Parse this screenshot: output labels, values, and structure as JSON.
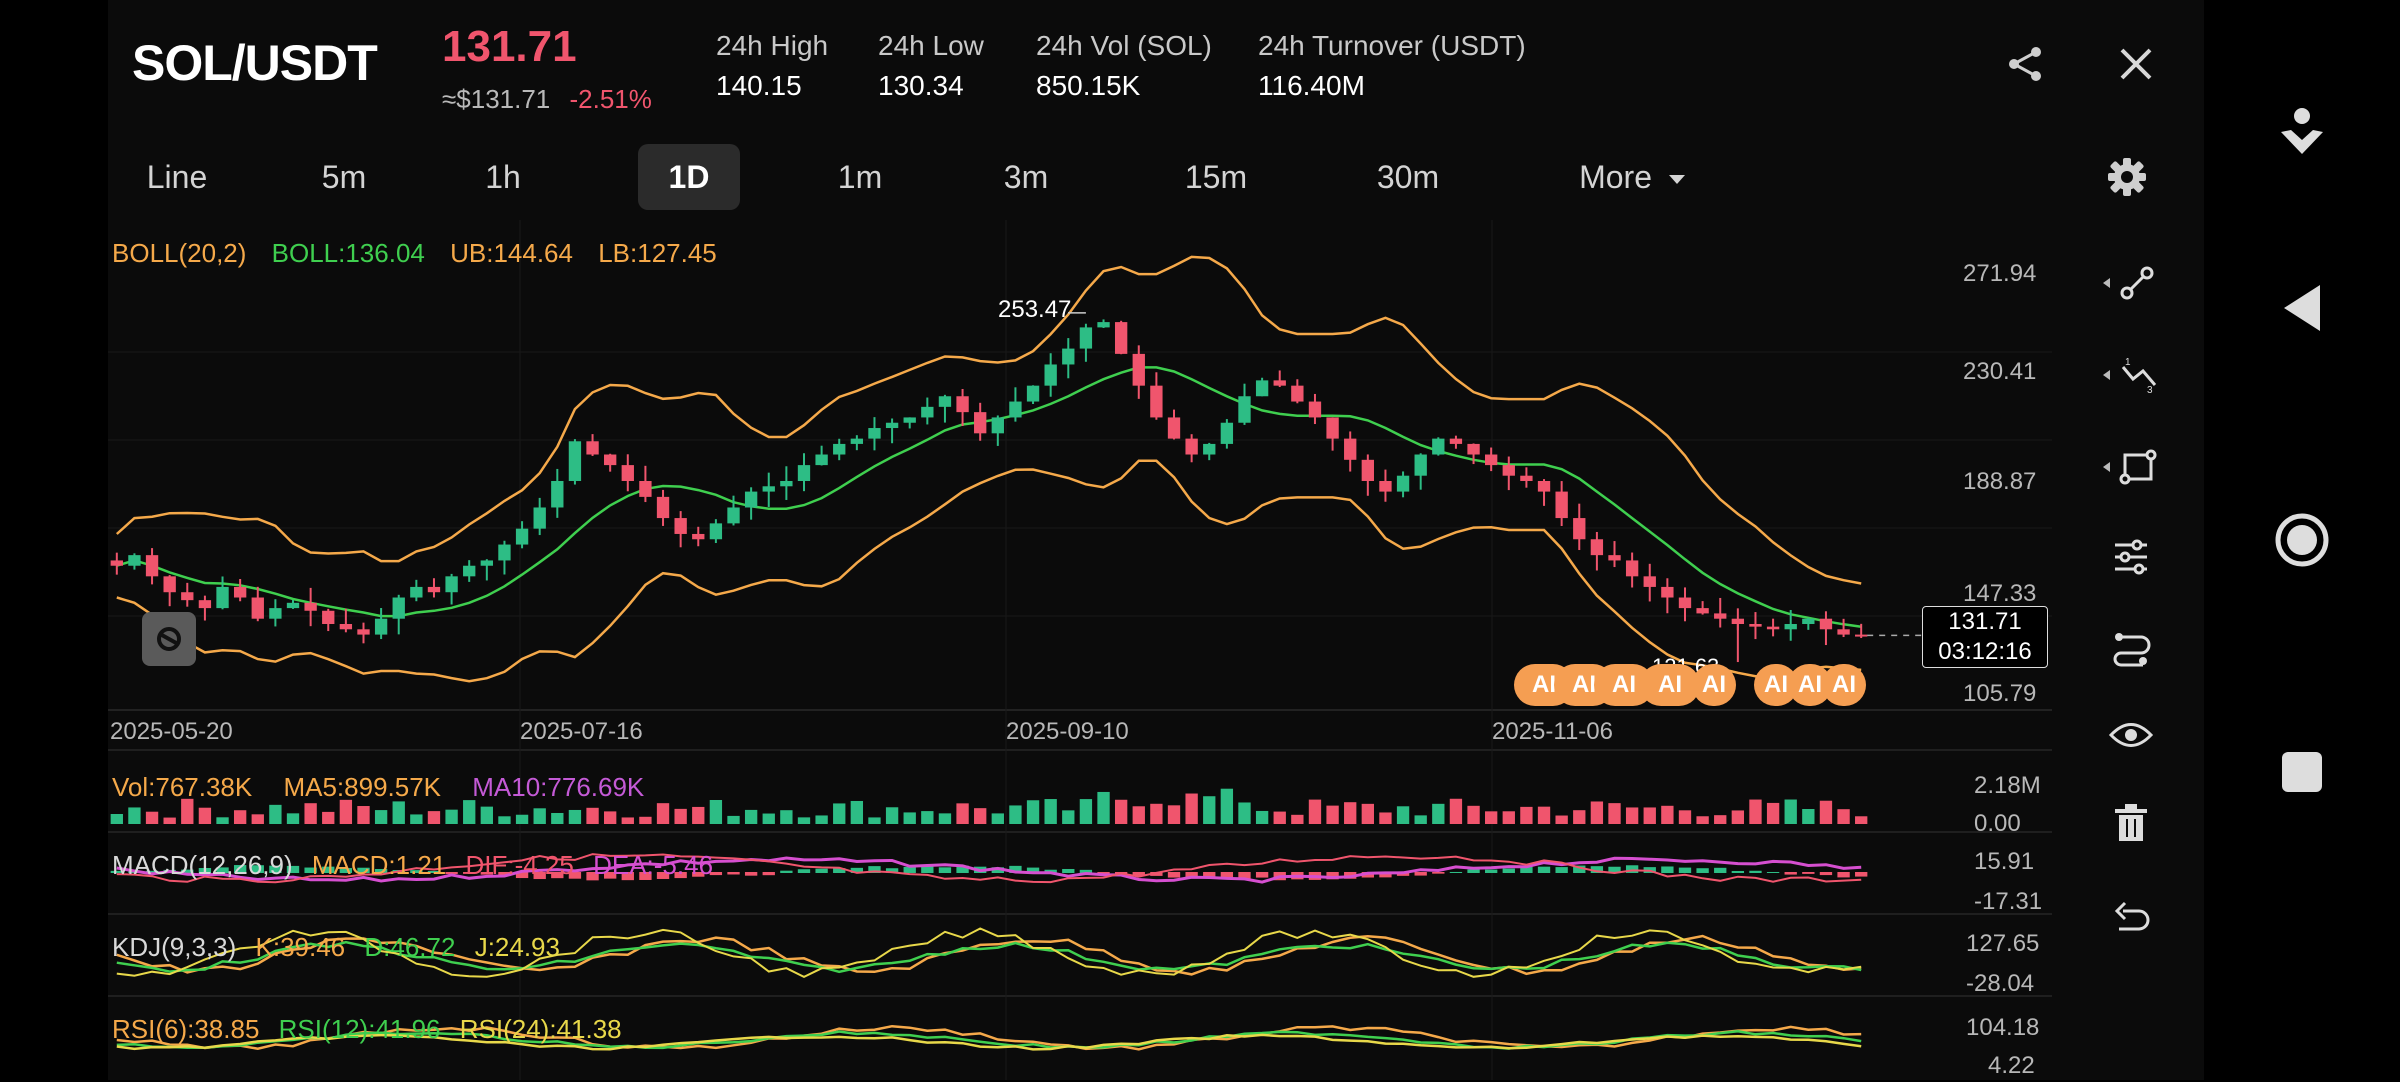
{
  "header": {
    "pair": "SOL/USDT",
    "last_price": "131.71",
    "usd_price": "≈$131.71",
    "change": "-2.51%",
    "stats": [
      {
        "label": "24h High",
        "value": "140.15"
      },
      {
        "label": "24h Low",
        "value": "130.34"
      },
      {
        "label": "24h Vol (SOL)",
        "value": "850.15K"
      },
      {
        "label": "24h Turnover (USDT)",
        "value": "116.40M"
      }
    ],
    "icons": [
      "share-icon",
      "close-icon"
    ]
  },
  "tabs": [
    {
      "label": "Line"
    },
    {
      "label": "5m"
    },
    {
      "label": "1h"
    },
    {
      "label": "1D",
      "active": true
    },
    {
      "label": "1m"
    },
    {
      "label": "3m"
    },
    {
      "label": "15m"
    },
    {
      "label": "30m"
    },
    {
      "label": "More"
    }
  ],
  "indicators": {
    "boll": {
      "name": "BOLL(20,2)",
      "mid": "BOLL:136.04",
      "ub": "UB:144.64",
      "lb": "LB:127.45"
    },
    "vol": {
      "vol": "Vol:767.38K",
      "ma5": "MA5:899.57K",
      "ma10": "MA10:776.69K"
    },
    "macd": {
      "name": "MACD(12,26,9)",
      "macd": "MACD:1.21",
      "dif": "DIF:-4.25",
      "dea": "DEA:-5.46"
    },
    "kdj": {
      "name": "KDJ(9,3,3)",
      "k": "K:39.46",
      "d": "D:46.72",
      "j": "J:24.93"
    },
    "rsi": {
      "r6": "RSI(6):38.85",
      "r12": "RSI(12):41.96",
      "r24": "RSI(24):41.38"
    }
  },
  "axis": {
    "price_ticks": [
      "271.94",
      "230.41",
      "188.87",
      "147.33",
      "105.79"
    ],
    "date_ticks": [
      "2025-05-20",
      "2025-07-16",
      "2025-09-10",
      "2025-11-06"
    ],
    "vol_ticks": [
      "2.18M",
      "0.00"
    ],
    "macd_ticks": [
      "15.91",
      "-17.31"
    ],
    "kdj_ticks": [
      "127.65",
      "-28.04"
    ],
    "rsi_ticks": [
      "104.18",
      "4.22"
    ]
  },
  "annotations": {
    "high_label": "253.47",
    "low_label": "121.63",
    "current_price": "131.71",
    "countdown": "03:12:16",
    "ai_markers": [
      "AI",
      "AI",
      "AI",
      "AI",
      "AI",
      "AI",
      "AI",
      "AI"
    ]
  },
  "colors": {
    "up": "#2dbd85",
    "down": "#f0556d",
    "boll_mid": "#3fcf4f",
    "boll_band": "#f5a94a",
    "accent": "#f59e52"
  },
  "chart_data": {
    "type": "candlestick",
    "title": "SOL/USDT 1D",
    "y_range": [
      105.79,
      271.94
    ],
    "highest": 253.47,
    "lowest": 121.63,
    "last": 131.71,
    "close_series": [
      158,
      162,
      154,
      148,
      145,
      142,
      150,
      146,
      138,
      142,
      144,
      141,
      136,
      134,
      132,
      138,
      146,
      150,
      148,
      154,
      158,
      160,
      166,
      172,
      180,
      190,
      205,
      200,
      196,
      190,
      184,
      176,
      170,
      168,
      174,
      180,
      186,
      188,
      190,
      196,
      200,
      204,
      206,
      210,
      212,
      214,
      218,
      222,
      216,
      208,
      214,
      220,
      226,
      234,
      240,
      248,
      250,
      238,
      226,
      214,
      206,
      200,
      204,
      212,
      222,
      228,
      226,
      220,
      214,
      206,
      198,
      190,
      186,
      192,
      200,
      206,
      204,
      200,
      196,
      192,
      190,
      186,
      176,
      168,
      162,
      160,
      154,
      150,
      146,
      142,
      140,
      138,
      136,
      135,
      134,
      136,
      138,
      134,
      132,
      131.71
    ]
  },
  "side_tools": [
    "line-tool-icon",
    "trend-tool-icon",
    "shape-tool-icon",
    "indicator-settings-icon",
    "strategy-icon",
    "visibility-icon",
    "delete-icon",
    "undo-icon"
  ],
  "settings_icon": "gear-icon",
  "floating_icon": "tradingview-icon",
  "nav": [
    "person-icon",
    "back-icon",
    "home-icon",
    "recents-icon"
  ]
}
